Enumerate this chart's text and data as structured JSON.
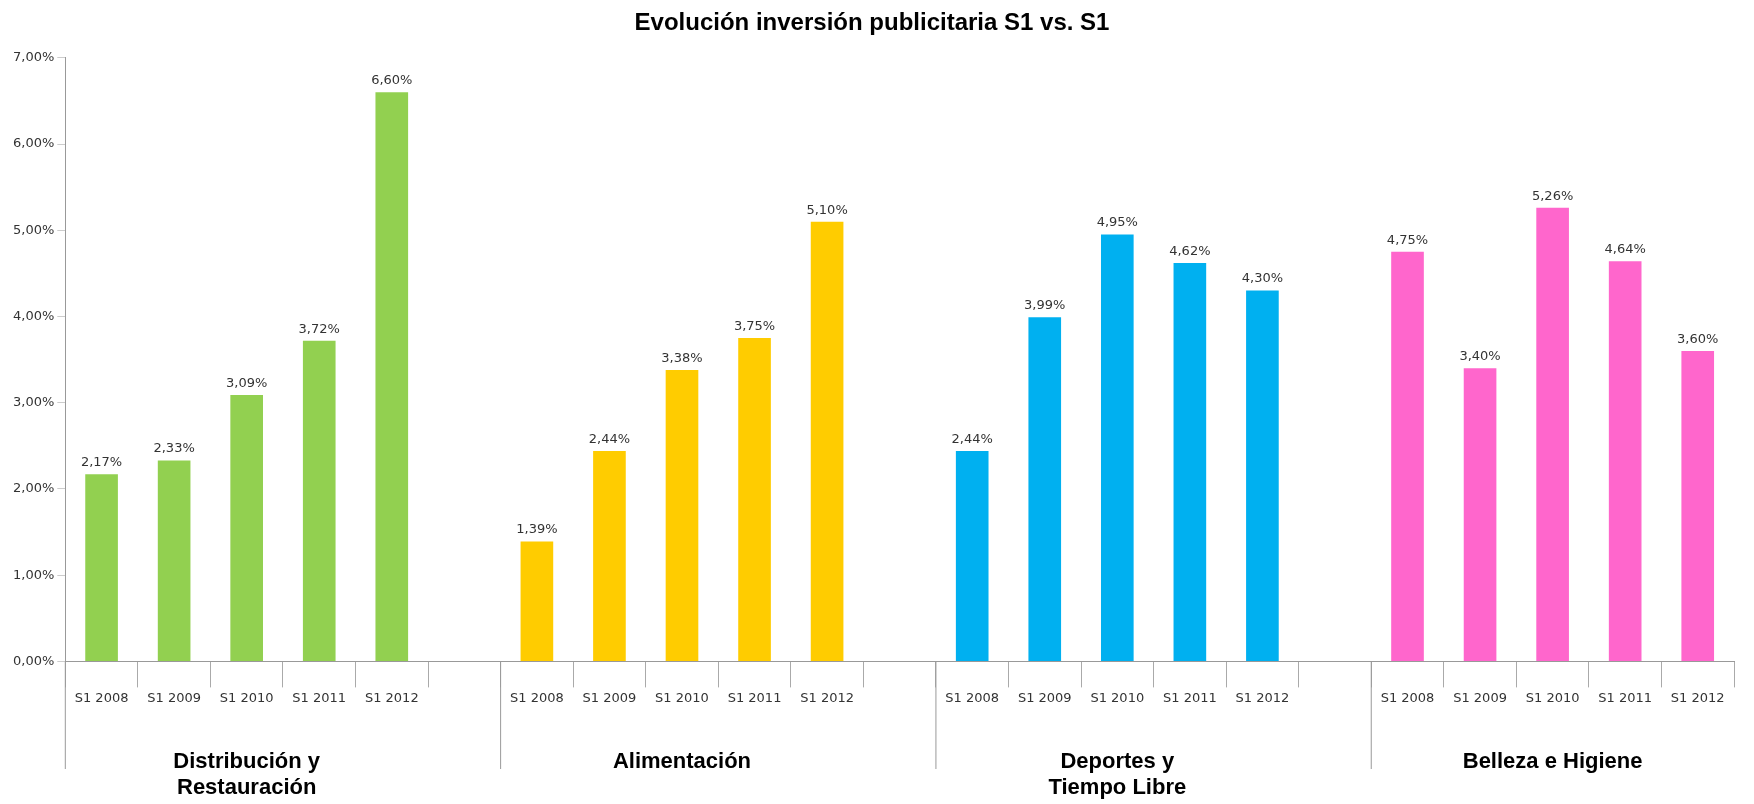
{
  "chart_data": {
    "type": "bar",
    "title": "Evolución inversión publicitaria S1 vs. S1",
    "categories": [
      "S1 2008",
      "S1 2009",
      "S1 2010",
      "S1 2011",
      "S1 2012",
      null,
      "S1 2008",
      "S1 2009",
      "S1 2010",
      "S1 2011",
      "S1 2012",
      null,
      "S1 2008",
      "S1 2009",
      "S1 2010",
      "S1 2011",
      "S1 2012",
      null,
      "S1 2008",
      "S1 2009",
      "S1 2010",
      "S1 2011",
      "S1 2012"
    ],
    "series": [
      {
        "color": "#92d050",
        "values": [
          2.17,
          2.33,
          3.09,
          3.72,
          6.6,
          null,
          null,
          null,
          null,
          null,
          null,
          null,
          null,
          null,
          null,
          null,
          null,
          null,
          null,
          null,
          null,
          null,
          null
        ],
        "value_labels": [
          "2,17%",
          "2,33%",
          "3,09%",
          "3,72%",
          "6,60%",
          null,
          null,
          null,
          null,
          null,
          null,
          null,
          null,
          null,
          null,
          null,
          null,
          null,
          null,
          null,
          null,
          null,
          null
        ]
      },
      {
        "color": "#ffcc00",
        "values": [
          null,
          null,
          null,
          null,
          null,
          null,
          1.39,
          2.44,
          3.38,
          3.75,
          5.1,
          null,
          null,
          null,
          null,
          null,
          null,
          null,
          null,
          null,
          null,
          null,
          null
        ],
        "value_labels": [
          null,
          null,
          null,
          null,
          null,
          null,
          "1,39%",
          "2,44%",
          "3,38%",
          "3,75%",
          "5,10%",
          null,
          null,
          null,
          null,
          null,
          null,
          null,
          null,
          null,
          null,
          null,
          null
        ]
      },
      {
        "color": "#00b0f0",
        "values": [
          null,
          null,
          null,
          null,
          null,
          null,
          null,
          null,
          null,
          null,
          null,
          null,
          2.44,
          3.99,
          4.95,
          4.62,
          4.3,
          null,
          null,
          null,
          null,
          null,
          null
        ],
        "value_labels": [
          null,
          null,
          null,
          null,
          null,
          null,
          null,
          null,
          null,
          null,
          null,
          null,
          "2,44%",
          "3,99%",
          "4,95%",
          "4,62%",
          "4,30%",
          null,
          null,
          null,
          null,
          null,
          null
        ]
      },
      {
        "color": "#ff66cc",
        "values": [
          null,
          null,
          null,
          null,
          null,
          null,
          null,
          null,
          null,
          null,
          null,
          null,
          null,
          null,
          null,
          null,
          null,
          null,
          4.75,
          3.4,
          5.26,
          4.64,
          3.6
        ],
        "value_labels": [
          null,
          null,
          null,
          null,
          null,
          null,
          null,
          null,
          null,
          null,
          null,
          null,
          null,
          null,
          null,
          null,
          null,
          null,
          "4,75%",
          "3,40%",
          "5,26%",
          "4,64%",
          "3,60%"
        ]
      }
    ],
    "ylim": [
      0,
      7
    ],
    "yticks": [
      {
        "value": 0,
        "label": "0,00%"
      },
      {
        "value": 1,
        "label": "1,00%"
      },
      {
        "value": 2,
        "label": "2,00%"
      },
      {
        "value": 3,
        "label": "3,00%"
      },
      {
        "value": 4,
        "label": "4,00%"
      },
      {
        "value": 5,
        "label": "5,00%"
      },
      {
        "value": 6,
        "label": "6,00%"
      },
      {
        "value": 7,
        "label": "7,00%"
      }
    ],
    "annotations": [
      "Distribución y\nRestauración",
      "Alimentación",
      "Deportes y\nTiempo Libre",
      "Belleza e Higiene"
    ],
    "grid": false,
    "legend": false
  }
}
